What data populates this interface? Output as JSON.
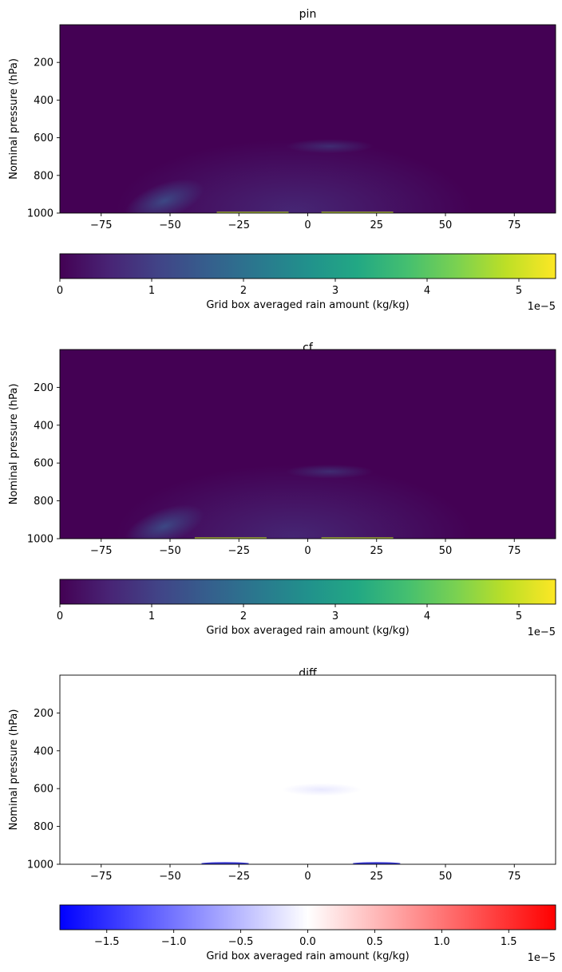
{
  "chart_data": [
    {
      "type": "heatmap",
      "title": "pin",
      "ylabel": "Nominal pressure (hPa)",
      "xlim": [
        -90,
        90
      ],
      "ylim": [
        1000,
        0
      ],
      "xticks": [
        "−75",
        "−50",
        "−25",
        "0",
        "25",
        "50",
        "75"
      ],
      "yticks": [
        "200",
        "400",
        "600",
        "800",
        "1000"
      ],
      "colormap": "viridis",
      "colorbar": {
        "label": "Grid box averaged rain amount (kg/kg)",
        "range": [
          0,
          5.4
        ],
        "ticks": [
          "0",
          "1",
          "2",
          "3",
          "4",
          "5"
        ],
        "offset": "1e−5"
      },
      "features": [
        {
          "lat": -52,
          "p": 935,
          "value": 0.9
        },
        {
          "lat": 8,
          "p": 645,
          "value": 0.45
        },
        {
          "lat": -20,
          "p": 998,
          "value": 5.0
        },
        {
          "lat": 18,
          "p": 998,
          "value": 4.5
        }
      ]
    },
    {
      "type": "heatmap",
      "title": "cf",
      "ylabel": "Nominal pressure (hPa)",
      "xlim": [
        -90,
        90
      ],
      "ylim": [
        1000,
        0
      ],
      "xticks": [
        "−75",
        "−50",
        "−25",
        "0",
        "25",
        "50",
        "75"
      ],
      "yticks": [
        "200",
        "400",
        "600",
        "800",
        "1000"
      ],
      "colormap": "viridis",
      "colorbar": {
        "label": "Grid box averaged rain amount (kg/kg)",
        "range": [
          0,
          5.4
        ],
        "ticks": [
          "0",
          "1",
          "2",
          "3",
          "4",
          "5"
        ],
        "offset": "1e−5"
      },
      "features": [
        {
          "lat": -52,
          "p": 935,
          "value": 0.9
        },
        {
          "lat": 8,
          "p": 645,
          "value": 0.45
        },
        {
          "lat": -28,
          "p": 998,
          "value": 5.0
        },
        {
          "lat": 18,
          "p": 998,
          "value": 4.5
        }
      ]
    },
    {
      "type": "heatmap",
      "title": "diff",
      "ylabel": "Nominal pressure (hPa)",
      "xlim": [
        -90,
        90
      ],
      "ylim": [
        1000,
        0
      ],
      "xticks": [
        "−75",
        "−50",
        "−25",
        "0",
        "25",
        "50",
        "75"
      ],
      "yticks": [
        "200",
        "400",
        "600",
        "800",
        "1000"
      ],
      "colormap": "bwr",
      "colorbar": {
        "label": "Grid box averaged rain amount (kg/kg)",
        "range": [
          -1.85,
          1.85
        ],
        "ticks": [
          "−1.5",
          "−1.0",
          "−0.5",
          "0.0",
          "0.5",
          "1.0",
          "1.5"
        ],
        "offset": "1e−5"
      },
      "features": [
        {
          "lat": 5,
          "p": 605,
          "value": -0.15
        },
        {
          "lat": -30,
          "p": 998,
          "value": -1.5
        },
        {
          "lat": 25,
          "p": 998,
          "value": -1.3
        }
      ]
    }
  ]
}
